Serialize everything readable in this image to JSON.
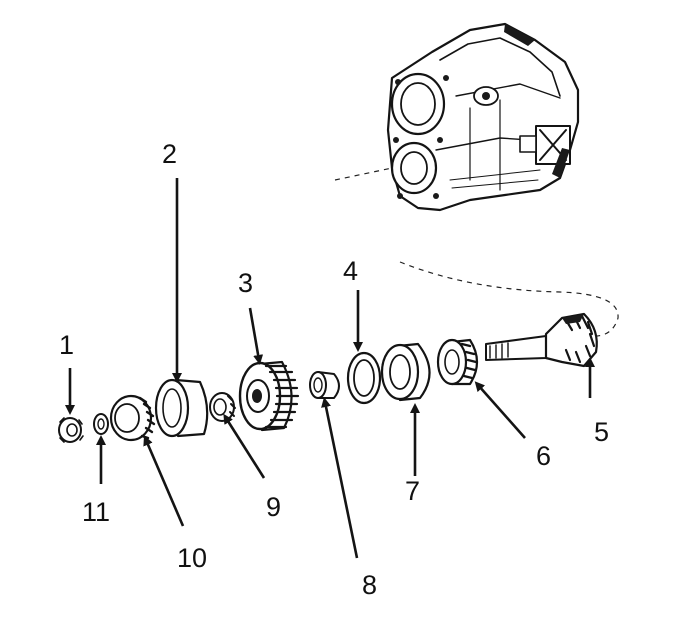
{
  "callouts": {
    "c1": "1",
    "c2": "2",
    "c3": "3",
    "c4": "4",
    "c5": "5",
    "c6": "6",
    "c7": "7",
    "c8": "8",
    "c9": "9",
    "c10": "10",
    "c11": "11"
  },
  "colors": {
    "ink": "#141414",
    "background": "#ffffff",
    "shade": "#bdbdbd"
  }
}
